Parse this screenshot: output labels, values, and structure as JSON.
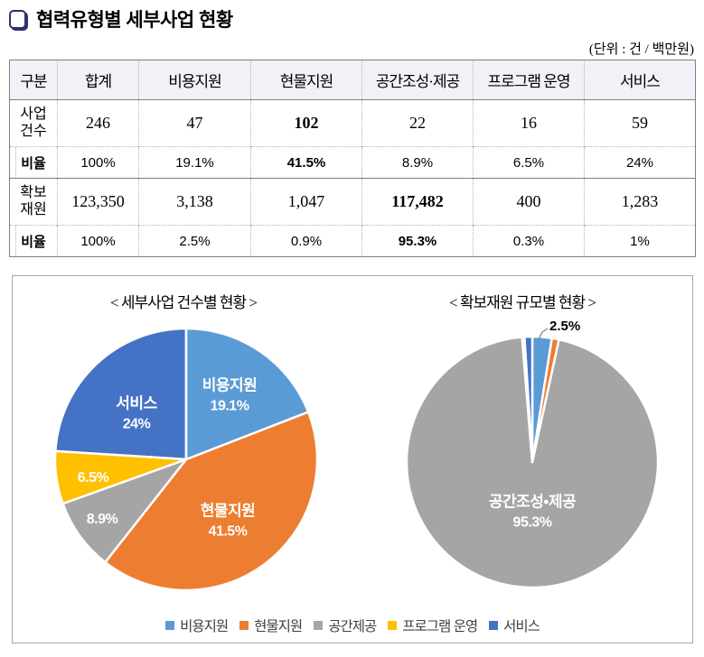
{
  "header": {
    "title": "협력유형별 세부사업 현황",
    "unit": "(단위 : 건 / 백만원)"
  },
  "table": {
    "columns": [
      "구분",
      "합계",
      "비용지원",
      "현물지원",
      "공간조성·제공",
      "프로그램 운영",
      "서비스"
    ],
    "rows": [
      {
        "label": "사업\n건수",
        "type": "group",
        "values": [
          "246",
          "47",
          "102",
          "22",
          "16",
          "59"
        ],
        "emphasis_col": 2
      },
      {
        "label": "비율",
        "type": "sub",
        "values": [
          "100%",
          "19.1%",
          "41.5%",
          "8.9%",
          "6.5%",
          "24%"
        ],
        "emphasis_col": 2
      },
      {
        "label": "확보\n재원",
        "type": "group",
        "values": [
          "123,350",
          "3,138",
          "1,047",
          "117,482",
          "400",
          "1,283"
        ],
        "emphasis_col": 3
      },
      {
        "label": "비율",
        "type": "sub",
        "values": [
          "100%",
          "2.5%",
          "0.9%",
          "95.3%",
          "0.3%",
          "1%"
        ],
        "emphasis_col": 3
      }
    ]
  },
  "chart_data": [
    {
      "type": "pie",
      "title": "< 세부사업 건수별 현황 >",
      "categories": [
        "비용지원",
        "현물지원",
        "공간제공",
        "프로그램 운영",
        "서비스"
      ],
      "values": [
        19.1,
        41.5,
        8.9,
        6.5,
        24
      ],
      "unit": "%",
      "colors": [
        "#5B9BD5",
        "#ED7D31",
        "#A5A5A5",
        "#FFC000",
        "#4472C4"
      ],
      "start_angle_deg": 0,
      "direction": "clockwise",
      "slice_labels": [
        {
          "name": "비용지원",
          "pct": "19.1%"
        },
        {
          "name": "현물지원",
          "pct": "41.5%"
        },
        {
          "name": "",
          "pct": "8.9%"
        },
        {
          "name": "",
          "pct": "6.5%"
        },
        {
          "name": "서비스",
          "pct": "24%"
        }
      ]
    },
    {
      "type": "pie",
      "title": "< 확보재원 규모별 현황 >",
      "categories": [
        "비용지원",
        "현물지원",
        "공간조성·제공",
        "프로그램 운영",
        "서비스"
      ],
      "values": [
        2.5,
        0.9,
        95.3,
        0.3,
        1
      ],
      "unit": "%",
      "colors": [
        "#5B9BD5",
        "#ED7D31",
        "#A5A5A5",
        "#FFC000",
        "#4472C4"
      ],
      "start_angle_deg": 0,
      "direction": "clockwise",
      "callout": {
        "label": "2.5%"
      },
      "center_label": {
        "name": "공간조성•제공",
        "pct": "95.3%"
      }
    }
  ],
  "legend": {
    "items": [
      {
        "label": "비용지원",
        "color": "#5B9BD5"
      },
      {
        "label": "현물지원",
        "color": "#ED7D31"
      },
      {
        "label": "공간제공",
        "color": "#A5A5A5"
      },
      {
        "label": "프로그램 운영",
        "color": "#FFC000"
      },
      {
        "label": "서비스",
        "color": "#4472C4"
      }
    ]
  }
}
